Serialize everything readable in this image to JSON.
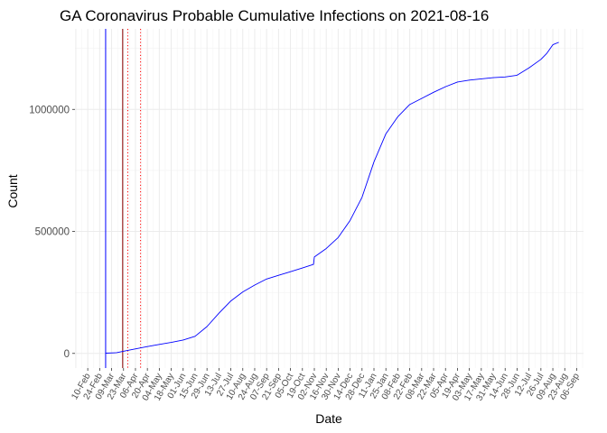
{
  "chart_data": {
    "type": "line",
    "title": "GA Coronavirus Probable Cumulative Infections on 2021-08-16",
    "xlabel": "Date",
    "ylabel": "Count",
    "x_range": [
      "2020-01-26",
      "2021-09-14"
    ],
    "ylim": [
      -60000,
      1330000
    ],
    "y_ticks": [
      0,
      500000,
      1000000
    ],
    "grid": true,
    "legend": "none",
    "x_tick_labels": [
      "10-Feb",
      "24-Feb",
      "09-Mar",
      "23-Mar",
      "06-Apr",
      "20-Apr",
      "04-May",
      "18-May",
      "01-Jun",
      "15-Jun",
      "29-Jun",
      "13-Jul",
      "27-Jul",
      "10-Aug",
      "24-Aug",
      "07-Sep",
      "21-Sep",
      "05-Oct",
      "19-Oct",
      "02-Nov",
      "16-Nov",
      "30-Nov",
      "14-Dec",
      "28-Dec",
      "11-Jan",
      "25-Jan",
      "08-Feb",
      "22-Feb",
      "08-Mar",
      "22-Mar",
      "05-Apr",
      "19-Apr",
      "03-May",
      "17-May",
      "31-May",
      "14-Jun",
      "28-Jun",
      "12-Jul",
      "26-Jul",
      "09-Aug",
      "23-Aug",
      "06-Sep"
    ],
    "x_tick_dates": [
      "2020-02-10",
      "2020-02-24",
      "2020-03-09",
      "2020-03-23",
      "2020-04-06",
      "2020-04-20",
      "2020-05-04",
      "2020-05-18",
      "2020-06-01",
      "2020-06-15",
      "2020-06-29",
      "2020-07-13",
      "2020-07-27",
      "2020-08-10",
      "2020-08-24",
      "2020-09-07",
      "2020-09-21",
      "2020-10-05",
      "2020-10-19",
      "2020-11-02",
      "2020-11-16",
      "2020-11-30",
      "2020-12-14",
      "2020-12-28",
      "2021-01-11",
      "2021-01-25",
      "2021-02-08",
      "2021-02-22",
      "2021-03-08",
      "2021-03-22",
      "2021-04-05",
      "2021-04-19",
      "2021-05-03",
      "2021-05-17",
      "2021-05-31",
      "2021-06-14",
      "2021-06-28",
      "2021-07-12",
      "2021-07-26",
      "2021-08-09",
      "2021-08-23",
      "2021-09-06"
    ],
    "vertical_lines": [
      {
        "date": "2020-03-02",
        "color": "#0000ff",
        "style": "solid"
      },
      {
        "date": "2020-03-22",
        "color": "#8b0000",
        "style": "solid"
      },
      {
        "date": "2020-03-28",
        "color": "#ff0000",
        "style": "dotted"
      },
      {
        "date": "2020-04-12",
        "color": "#ff0000",
        "style": "dotted"
      }
    ],
    "series": [
      {
        "color": "#0000ff",
        "x": [
          "2020-03-02",
          "2020-03-15",
          "2020-03-22",
          "2020-04-05",
          "2020-04-20",
          "2020-05-04",
          "2020-05-18",
          "2020-06-01",
          "2020-06-15",
          "2020-06-29",
          "2020-07-13",
          "2020-07-27",
          "2020-08-10",
          "2020-08-24",
          "2020-09-07",
          "2020-09-21",
          "2020-10-05",
          "2020-10-19",
          "2020-11-01",
          "2020-11-02",
          "2020-11-16",
          "2020-11-30",
          "2020-12-14",
          "2020-12-28",
          "2021-01-11",
          "2021-01-25",
          "2021-02-08",
          "2021-02-22",
          "2021-03-08",
          "2021-03-22",
          "2021-04-05",
          "2021-04-19",
          "2021-05-03",
          "2021-05-17",
          "2021-05-31",
          "2021-06-14",
          "2021-06-28",
          "2021-07-12",
          "2021-07-26",
          "2021-08-02",
          "2021-08-09",
          "2021-08-16"
        ],
        "y": [
          1000,
          3000,
          8000,
          18000,
          28000,
          37000,
          45000,
          55000,
          70000,
          110000,
          165000,
          215000,
          252000,
          280000,
          305000,
          320000,
          335000,
          350000,
          365000,
          395000,
          430000,
          475000,
          545000,
          640000,
          785000,
          900000,
          970000,
          1020000,
          1045000,
          1070000,
          1093000,
          1112000,
          1120000,
          1125000,
          1130000,
          1133000,
          1140000,
          1170000,
          1205000,
          1230000,
          1265000,
          1275000
        ]
      }
    ]
  }
}
